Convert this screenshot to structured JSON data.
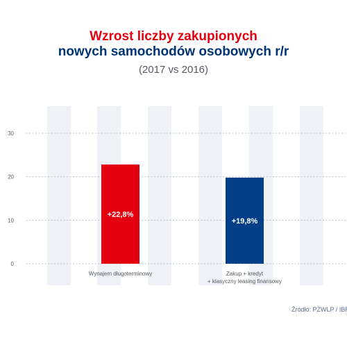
{
  "title_line1": "Wzrost liczby zakupionych",
  "title_line2": "nowych samochodów osobowych r/r",
  "subtitle": "(2017 vs 2016)",
  "source": "Źródło: PZWLP / IBRM",
  "colors": {
    "title_red": "#e3000f",
    "title_blue": "#003574",
    "bar_red": "#e3000f",
    "bar_blue": "#003f87",
    "stripe": "#eef1f5",
    "grid": "#b9bec6"
  },
  "chart_data": {
    "type": "bar",
    "categories": [
      [
        "Wynajem długoterminowy"
      ],
      [
        "Zakup + kredyt",
        "+ klasyczny leasing finansowy"
      ]
    ],
    "values": [
      22.8,
      19.8
    ],
    "data_labels": [
      "+22,8%",
      "+19,8%"
    ],
    "bar_colors": [
      "#e3000f",
      "#003f87"
    ],
    "y_ticks": [
      0,
      10,
      20,
      30
    ],
    "ylim": [
      0,
      30
    ],
    "grid": true
  }
}
